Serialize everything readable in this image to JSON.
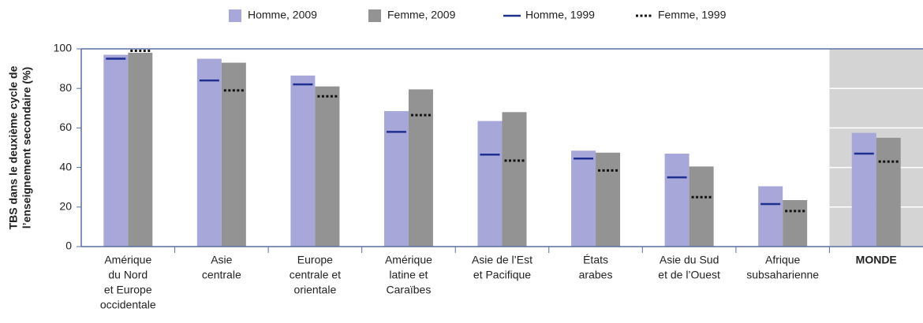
{
  "chart_data": {
    "type": "bar",
    "y_label": [
      "TBS dans le deuxième cycle de",
      "l’enseignement secondaire (%)"
    ],
    "categories": [
      [
        "Amérique",
        "du Nord",
        "et Europe",
        "occidentale"
      ],
      [
        "Asie",
        "centrale"
      ],
      [
        "Europe",
        "centrale et",
        "orientale"
      ],
      [
        "Amérique",
        "latine et",
        "Caraïbes"
      ],
      [
        "Asie de l’Est",
        "et Pacifique"
      ],
      [
        "États",
        "arabes"
      ],
      [
        "Asie du Sud",
        "et de l’Ouest"
      ],
      [
        "Afrique",
        "subsaharienne"
      ],
      [
        "MONDE"
      ]
    ],
    "series": [
      {
        "name": "Homme, 2009",
        "color": "#a7a7d9",
        "style": "bar",
        "values": [
          97,
          95,
          86.5,
          68.5,
          63.5,
          48.5,
          47,
          30.5,
          57.5
        ]
      },
      {
        "name": "Femme, 2009",
        "color": "#939393",
        "style": "bar",
        "values": [
          98,
          93,
          81,
          79.5,
          68,
          47.5,
          40.5,
          23.5,
          55
        ]
      },
      {
        "name": "Homme, 1999",
        "color": "#1f2f8f",
        "style": "line",
        "values": [
          95,
          84,
          82,
          58,
          46.5,
          44.5,
          35,
          21.5,
          47
        ]
      },
      {
        "name": "Femme, 1999",
        "color": "#111111",
        "style": "dots",
        "values": [
          99,
          79,
          76,
          66.5,
          43.5,
          38.5,
          25,
          18,
          43
        ]
      }
    ],
    "ylim": [
      0,
      100
    ],
    "yticks": [
      0,
      20,
      40,
      60,
      80,
      100
    ]
  }
}
